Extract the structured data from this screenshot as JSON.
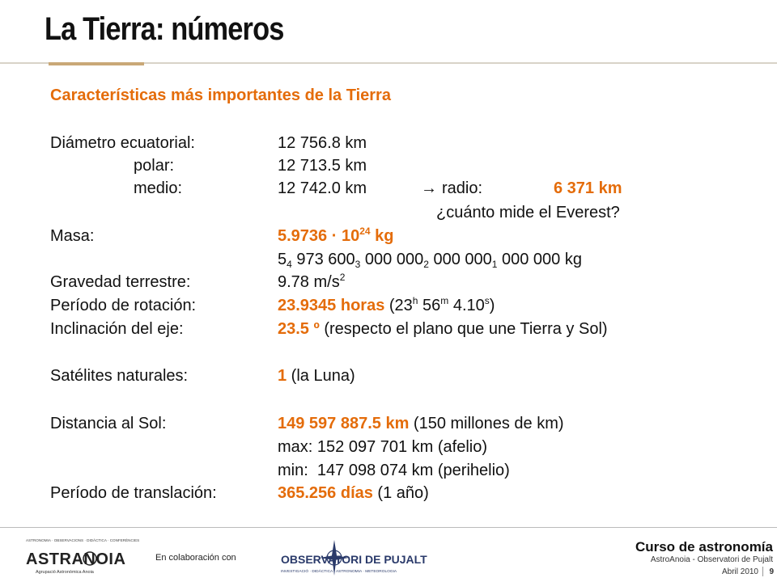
{
  "title": "La Tierra: números",
  "heading": "Características más importantes de la Tierra",
  "diametro": {
    "label": "Diámetro ecuatorial:",
    "value": "12 756.8 km",
    "polar_label": "polar:",
    "polar_value": "12 713.5 km",
    "medio_label": "medio:",
    "medio_value": "12 742.0 km",
    "arrow": "→",
    "radio_label": "radio:",
    "radio_value": "6 371 km",
    "everest": "¿cuánto mide el Everest?"
  },
  "masa": {
    "label": "Masa:",
    "value_base": "5.9736 · 10",
    "value_exp": "24",
    "value_unit": " kg",
    "d1": "5",
    "s1": "4",
    "d2": " 973 600",
    "s2": "3",
    "d3": " 000 000",
    "s3": "2",
    "d4": " 000 000",
    "s4": "1",
    "d5": " 000 000 kg"
  },
  "gravedad": {
    "label": "Gravedad terrestre:",
    "value": "9.78 m/s",
    "exp": "2"
  },
  "rotacion": {
    "label": "Período de rotación:",
    "value": "23.9345 horas",
    "p_open": " (23",
    "h": "h",
    "p_mid": " 56",
    "m": "m",
    "p_sec": " 4.10",
    "s": "s",
    "p_close": ")"
  },
  "inclinacion": {
    "label": "Inclinación del eje:",
    "value": "23.5 º",
    "note": " (respecto el plano que une Tierra y Sol)"
  },
  "satelites": {
    "label": "Satélites naturales:",
    "value": "1",
    "note": " (la Luna)"
  },
  "distancia": {
    "label": "Distancia al Sol:",
    "value": "149 597 887.5 km",
    "note": " (150 millones de km)",
    "max": "max: 152 097 701 km (afelio)",
    "min": "min:  147 098 074 km (perihelio)"
  },
  "traslacion": {
    "label": "Período de translación:",
    "value": "365.256 días",
    "note": " (1 año)"
  },
  "footer": {
    "astro_tagline": "ASTRONOMIA · OBSERVACIONS · DIDÀCTICA · CONFERÈNCIES",
    "astro_name": "ASTRANOIA",
    "astro_sub": "Agrupació Astronòmica Anoia",
    "collab": "En colaboración con",
    "obs_name": "OBSERVATORI DE PUJALT",
    "obs_sub": "INVESTIGACIÓ · DIDÀCTICA · ASTRONOMIA · METEOROLOGIA",
    "course": "Curso de astronomía",
    "course_sub": "AstroAnoia - Observatori de Pujalt",
    "date": "Abril 2010",
    "page": "9"
  },
  "colors": {
    "accent": "#e46c0a",
    "rule": "#c9a877"
  }
}
